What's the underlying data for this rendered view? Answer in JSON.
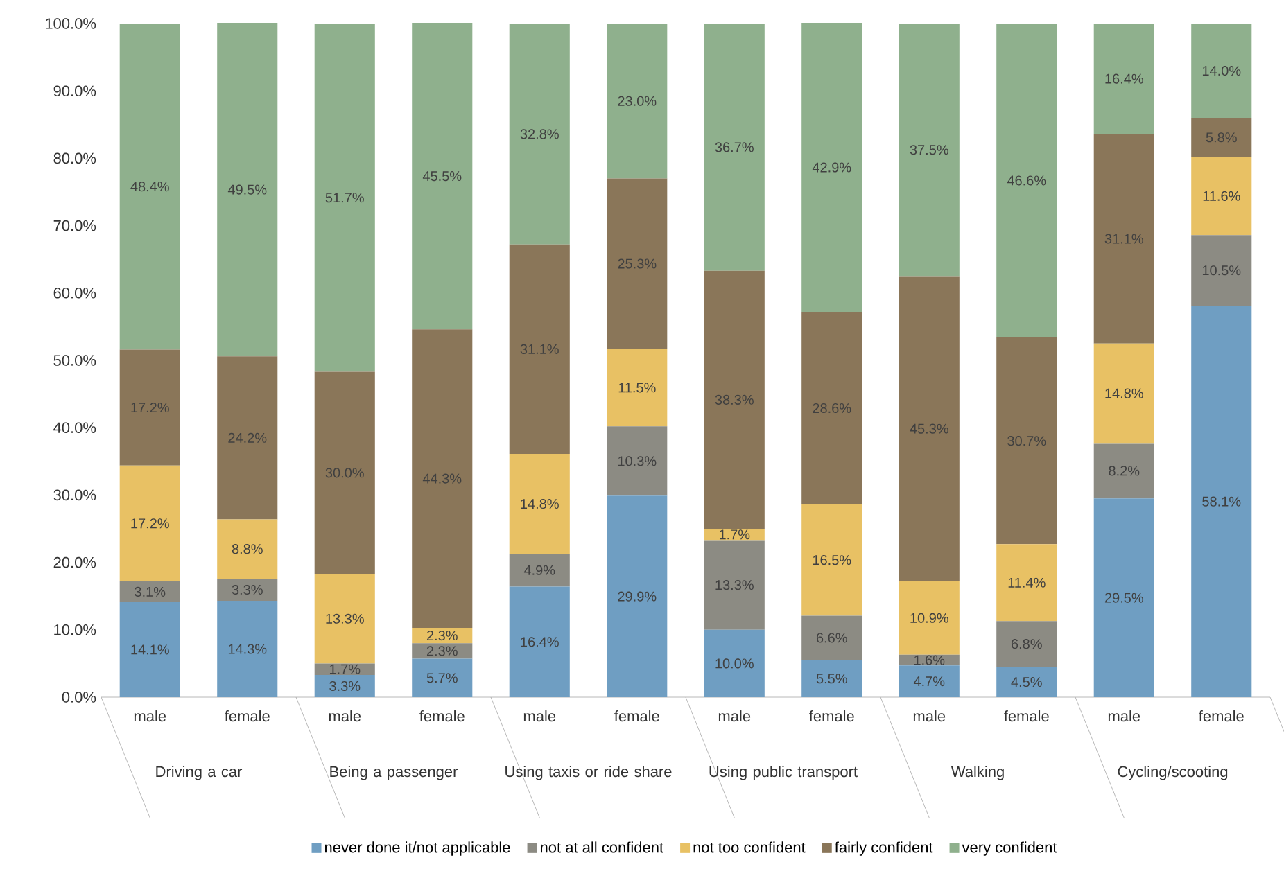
{
  "chart_data": {
    "type": "bar",
    "stacked": true,
    "legend": "bottom",
    "categories": [
      "male",
      "female",
      "male",
      "female",
      "male",
      "female",
      "male",
      "female",
      "male",
      "female",
      "male",
      "female"
    ],
    "annotations": [
      "Driving a car",
      "Being a passenger",
      "Using taxis or ride share",
      "Using public transport",
      "Walking",
      "Cycling/scooting"
    ],
    "ylim": [
      0,
      100
    ],
    "yticks": [
      {
        "value": 0,
        "label": "0.0%"
      },
      {
        "value": 10,
        "label": "10.0%"
      },
      {
        "value": 20,
        "label": "20.0%"
      },
      {
        "value": 30,
        "label": "30.0%"
      },
      {
        "value": 40,
        "label": "40.0%"
      },
      {
        "value": 50,
        "label": "50.0%"
      },
      {
        "value": 60,
        "label": "60.0%"
      },
      {
        "value": 70,
        "label": "70.0%"
      },
      {
        "value": 80,
        "label": "80.0%"
      },
      {
        "value": 90,
        "label": "90.0%"
      },
      {
        "value": 100,
        "label": "100.0%"
      }
    ],
    "series": [
      {
        "name": "never done it/not applicable",
        "color": "#6f9ec2",
        "values": [
          14.1,
          14.3,
          3.3,
          5.7,
          16.4,
          29.9,
          10.0,
          5.5,
          4.7,
          4.5,
          29.5,
          58.1
        ],
        "value_labels": [
          "14.1%",
          "14.3%",
          "3.3%",
          "5.7%",
          "16.4%",
          "29.9%",
          "10.0%",
          "5.5%",
          "4.7%",
          "4.5%",
          "29.5%",
          "58.1%"
        ]
      },
      {
        "name": "not at all confident",
        "color": "#8c8b83",
        "values": [
          3.1,
          3.3,
          1.7,
          2.3,
          4.9,
          10.3,
          13.3,
          6.6,
          1.6,
          6.8,
          8.2,
          10.5
        ],
        "value_labels": [
          "3.1%",
          "3.3%",
          "1.7%",
          "2.3%",
          "4.9%",
          "10.3%",
          "13.3%",
          "6.6%",
          "1.6%",
          "6.8%",
          "8.2%",
          "10.5%"
        ]
      },
      {
        "name": "not too confident",
        "color": "#e8c164",
        "values": [
          17.2,
          8.8,
          13.3,
          2.3,
          14.8,
          11.5,
          1.7,
          16.5,
          10.9,
          11.4,
          14.8,
          11.6
        ],
        "value_labels": [
          "17.2%",
          "8.8%",
          "13.3%",
          "2.3%",
          "14.8%",
          "11.5%",
          "1.7%",
          "16.5%",
          "10.9%",
          "11.4%",
          "14.8%",
          "11.6%"
        ]
      },
      {
        "name": "fairly confident",
        "color": "#8a7659",
        "values": [
          17.2,
          24.2,
          30.0,
          44.3,
          31.1,
          25.3,
          38.3,
          28.6,
          45.3,
          30.7,
          31.1,
          5.8
        ],
        "value_labels": [
          "17.2%",
          "24.2%",
          "30.0%",
          "44.3%",
          "31.1%",
          "25.3%",
          "38.3%",
          "28.6%",
          "45.3%",
          "30.7%",
          "31.1%",
          "5.8%"
        ]
      },
      {
        "name": "very confident",
        "color": "#8fb08d",
        "values": [
          48.4,
          49.5,
          51.7,
          45.5,
          32.8,
          23.0,
          36.7,
          42.9,
          37.5,
          46.6,
          16.4,
          14.0
        ],
        "value_labels": [
          "48.4%",
          "49.5%",
          "51.7%",
          "45.5%",
          "32.8%",
          "23.0%",
          "36.7%",
          "42.9%",
          "37.5%",
          "46.6%",
          "16.4%",
          "14.0%"
        ]
      }
    ]
  }
}
